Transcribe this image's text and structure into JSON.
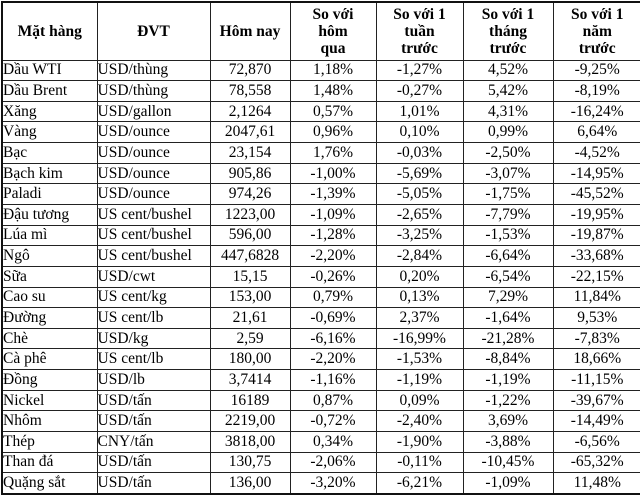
{
  "colors": {
    "text": "#000000",
    "border": "#222222",
    "background": "#ffffff"
  },
  "chart_data": {
    "type": "table",
    "title": "",
    "columns": [
      {
        "label": "Mặt hàng",
        "lines": [
          "Mặt hàng"
        ]
      },
      {
        "label": "ĐVT",
        "lines": [
          "ĐVT"
        ]
      },
      {
        "label": "Hôm nay",
        "lines": [
          "Hôm nay"
        ]
      },
      {
        "label": "So với hôm qua",
        "lines": [
          "So với",
          "hôm",
          "qua"
        ]
      },
      {
        "label": "So với 1 tuần trước",
        "lines": [
          "So với 1",
          "tuần",
          "trước"
        ]
      },
      {
        "label": "So với 1 tháng trước",
        "lines": [
          "So với 1",
          "tháng",
          "trước"
        ]
      },
      {
        "label": "So với 1 năm trước",
        "lines": [
          "So với 1",
          "năm",
          "trước"
        ]
      }
    ],
    "rows": [
      [
        "Dầu WTI",
        "USD/thùng",
        "72,870",
        "1,18%",
        "-1,27%",
        "4,52%",
        "-9,25%"
      ],
      [
        "Dầu Brent",
        "USD/thùng",
        "78,558",
        "1,48%",
        "-0,27%",
        "5,42%",
        "-8,19%"
      ],
      [
        "Xăng",
        "USD/gallon",
        "2,1264",
        "0,57%",
        "1,01%",
        "4,31%",
        "-16,24%"
      ],
      [
        "Vàng",
        "USD/ounce",
        "2047,61",
        "0,96%",
        "0,10%",
        "0,99%",
        "6,64%"
      ],
      [
        "Bạc",
        "USD/ounce",
        "23,154",
        "1,76%",
        "-0,03%",
        "-2,50%",
        "-4,52%"
      ],
      [
        "Bạch kim",
        "USD/ounce",
        "905,86",
        "-1,00%",
        "-5,69%",
        "-3,07%",
        "-14,95%"
      ],
      [
        "Paladi",
        "USD/ounce",
        "974,26",
        "-1,39%",
        "-5,05%",
        "-1,75%",
        "-45,52%"
      ],
      [
        "Đậu tương",
        "US cent/bushel",
        "1223,00",
        "-1,09%",
        "-2,65%",
        "-7,79%",
        "-19,95%"
      ],
      [
        "Lúa mì",
        "US cent/bushel",
        "596,00",
        "-1,28%",
        "-3,25%",
        "-1,53%",
        "-19,87%"
      ],
      [
        "Ngô",
        "US cent/bushel",
        "447,6828",
        "-2,20%",
        "-2,84%",
        "-6,64%",
        "-33,68%"
      ],
      [
        "Sữa",
        "USD/cwt",
        "15,15",
        "-0,26%",
        "0,20%",
        "-6,54%",
        "-22,15%"
      ],
      [
        "Cao su",
        "US cent/kg",
        "153,00",
        "0,79%",
        "0,13%",
        "7,29%",
        "11,84%"
      ],
      [
        "Đường",
        "US cent/lb",
        "21,61",
        "-0,69%",
        "2,37%",
        "-1,64%",
        "9,53%"
      ],
      [
        "Chè",
        "USD/kg",
        "2,59",
        "-6,16%",
        "-16,99%",
        "-21,28%",
        "-7,83%"
      ],
      [
        "Cà phê",
        "US cent/lb",
        "180,00",
        "-2,20%",
        "-1,53%",
        "-8,84%",
        "18,66%"
      ],
      [
        "Đồng",
        "USD/lb",
        "3,7414",
        "-1,16%",
        "-1,19%",
        "-1,19%",
        "-11,15%"
      ],
      [
        "Nickel",
        "USD/tấn",
        "16189",
        "0,87%",
        "0,09%",
        "-1,22%",
        "-39,67%"
      ],
      [
        "Nhôm",
        "USD/tấn",
        "2219,00",
        "-0,72%",
        "-2,40%",
        "3,69%",
        "-14,49%"
      ],
      [
        "Thép",
        "CNY/tấn",
        "3818,00",
        "0,34%",
        "-1,90%",
        "-3,88%",
        "-6,56%"
      ],
      [
        "Than đá",
        "USD/tấn",
        "130,75",
        "-2,06%",
        "-0,11%",
        "-10,45%",
        "-65,32%"
      ],
      [
        "Quặng sắt",
        "USD/tấn",
        "136,00",
        "-3,20%",
        "-6,21%",
        "-1,09%",
        "11,48%"
      ]
    ]
  }
}
